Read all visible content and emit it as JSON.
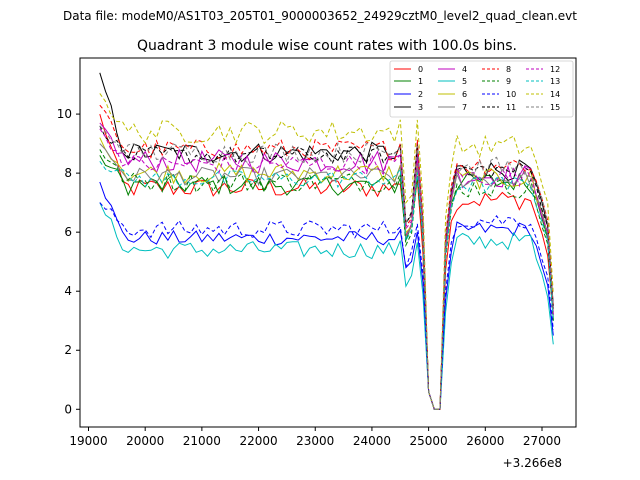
{
  "chart_data": {
    "type": "line",
    "suptitle": "Data file: modeM0/AS1T03_205T01_9000003652_24929cztM0_level2_quad_clean.evt",
    "title": "Quadrant 3 module wise count rates with 100.0s bins.",
    "xlabel": "",
    "ylabel": "",
    "x_offset_label": "+3.266e8",
    "x_offset": 326600000,
    "xlim": [
      18850,
      27600
    ],
    "ylim": [
      -0.6,
      11.9
    ],
    "x_ticks": [
      19000,
      20000,
      21000,
      22000,
      23000,
      24000,
      25000,
      26000,
      27000
    ],
    "x_tick_labels": [
      "19000",
      "20000",
      "21000",
      "22000",
      "23000",
      "24000",
      "25000",
      "26000",
      "27000"
    ],
    "y_ticks": [
      0,
      2,
      4,
      6,
      8,
      10
    ],
    "y_tick_labels": [
      "0",
      "2",
      "4",
      "6",
      "8",
      "10"
    ],
    "x_start": 19200,
    "x_step": 100,
    "legend_position": "top-right",
    "series": [
      {
        "name": "0",
        "color": "#ff0000",
        "dash": "solid",
        "base": 7.5,
        "start": 10.0,
        "amp": 0.35,
        "dip": 5.9,
        "dip2": 6.2,
        "end": 3.2
      },
      {
        "name": "1",
        "color": "#008000",
        "dash": "solid",
        "base": 7.6,
        "start": 8.6,
        "amp": 0.35,
        "dip": 5.8,
        "dip2": 6.8,
        "end": 3.0
      },
      {
        "name": "2",
        "color": "#0000ff",
        "dash": "solid",
        "base": 5.8,
        "start": 7.7,
        "amp": 0.25,
        "dip": 4.7,
        "dip2": 5.2,
        "end": 2.5
      },
      {
        "name": "3",
        "color": "#000000",
        "dash": "solid",
        "base": 8.7,
        "start": 11.4,
        "amp": 0.35,
        "dip": 6.2,
        "dip2": 7.2,
        "end": 3.5
      },
      {
        "name": "4",
        "color": "#bf00bf",
        "dash": "solid",
        "base": 8.4,
        "start": 9.7,
        "amp": 0.4,
        "dip": 6.0,
        "dip2": 7.0,
        "end": 3.3
      },
      {
        "name": "5",
        "color": "#00bfbf",
        "dash": "solid",
        "base": 5.4,
        "start": 7.0,
        "amp": 0.3,
        "dip": 4.2,
        "dip2": 4.8,
        "end": 2.2
      },
      {
        "name": "6",
        "color": "#bfbf00",
        "dash": "solid",
        "base": 8.0,
        "start": 9.2,
        "amp": 0.35,
        "dip": 5.9,
        "dip2": 6.9,
        "end": 3.1
      },
      {
        "name": "7",
        "color": "#808080",
        "dash": "solid",
        "base": 7.9,
        "start": 9.0,
        "amp": 0.3,
        "dip": 5.8,
        "dip2": 6.9,
        "end": 3.1
      },
      {
        "name": "8",
        "color": "#ff0000",
        "dash": "dashed",
        "base": 8.8,
        "start": 10.3,
        "amp": 0.35,
        "dip": 6.2,
        "dip2": 7.4,
        "end": 3.4
      },
      {
        "name": "9",
        "color": "#008000",
        "dash": "dashed",
        "base": 7.7,
        "start": 8.8,
        "amp": 0.35,
        "dip": 5.7,
        "dip2": 6.6,
        "end": 3.0
      },
      {
        "name": "10",
        "color": "#0000ff",
        "dash": "dashed",
        "base": 6.1,
        "start": 7.0,
        "amp": 0.3,
        "dip": 4.9,
        "dip2": 5.5,
        "end": 2.7
      },
      {
        "name": "11",
        "color": "#000000",
        "dash": "dashed",
        "base": 8.6,
        "start": 9.6,
        "amp": 0.3,
        "dip": 6.3,
        "dip2": 7.2,
        "end": 3.4
      },
      {
        "name": "12",
        "color": "#bf00bf",
        "dash": "dashed",
        "base": 8.3,
        "start": 9.5,
        "amp": 0.35,
        "dip": 6.0,
        "dip2": 7.0,
        "end": 3.2
      },
      {
        "name": "13",
        "color": "#00bfbf",
        "dash": "dashed",
        "base": 7.8,
        "start": 8.4,
        "amp": 0.3,
        "dip": 5.7,
        "dip2": 6.7,
        "end": 3.0
      },
      {
        "name": "14",
        "color": "#bfbf00",
        "dash": "dashed",
        "base": 9.4,
        "start": 10.7,
        "amp": 0.4,
        "dip": 6.9,
        "dip2": 8.0,
        "end": 3.9
      },
      {
        "name": "15",
        "color": "#808080",
        "dash": "dashed",
        "base": 8.7,
        "start": 9.6,
        "amp": 0.35,
        "dip": 6.3,
        "dip2": 7.3,
        "end": 3.4
      }
    ]
  }
}
